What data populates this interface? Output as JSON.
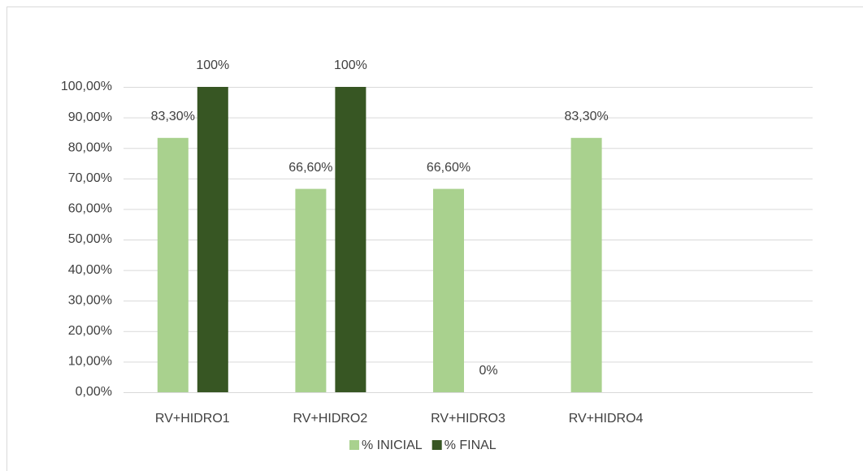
{
  "chart_data": {
    "type": "bar",
    "categories": [
      "RV+HIDRO1",
      "RV+HIDRO2",
      "RV+HIDRO3",
      "RV+HIDRO4",
      null
    ],
    "series": [
      {
        "name": "% INICIAL",
        "color": "#a9d18e",
        "values": [
          83.3,
          66.6,
          66.6,
          83.3,
          null
        ],
        "value_labels": [
          "83,30%",
          "66,60%",
          "66,60%",
          "83,30%",
          null
        ]
      },
      {
        "name": "% FINAL",
        "color": "#375623",
        "values": [
          100,
          100,
          0,
          null,
          null
        ],
        "value_labels": [
          "100%",
          "100%",
          "0%",
          null,
          null
        ]
      }
    ],
    "ylim": [
      0,
      100
    ],
    "yticks": [
      {
        "value": 0,
        "label": "0,00%"
      },
      {
        "value": 10,
        "label": "10,00%"
      },
      {
        "value": 20,
        "label": "20,00%"
      },
      {
        "value": 30,
        "label": "30,00%"
      },
      {
        "value": 40,
        "label": "40,00%"
      },
      {
        "value": 50,
        "label": "50,00%"
      },
      {
        "value": 60,
        "label": "60,00%"
      },
      {
        "value": 70,
        "label": "70,00%"
      },
      {
        "value": 80,
        "label": "80,00%"
      },
      {
        "value": 90,
        "label": "90,00%"
      },
      {
        "value": 100,
        "label": "100,00%"
      }
    ],
    "grid": true,
    "legend": "bottom"
  }
}
